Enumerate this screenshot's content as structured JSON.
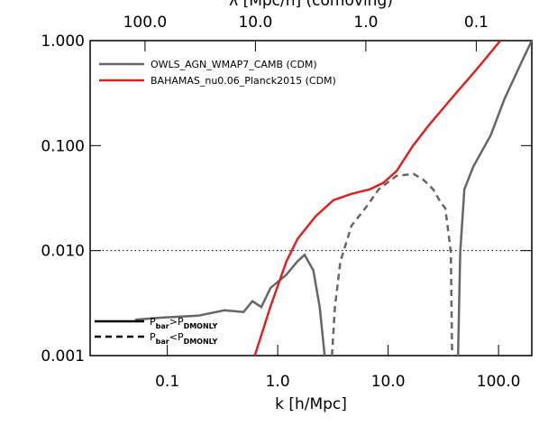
{
  "chart_data": {
    "type": "line",
    "xlabel": "k [h/Mpc]",
    "x2label": "λ [Mpc/h] (comoving)",
    "xscale": "log",
    "yscale": "log",
    "xlim": [
      0.02,
      200
    ],
    "ylim": [
      0.001,
      1.0
    ],
    "xticks": [
      {
        "value": 0.1,
        "label": "0.1"
      },
      {
        "value": 1,
        "label": "1.0"
      },
      {
        "value": 10,
        "label": "10.0"
      },
      {
        "value": 100,
        "label": "100.0"
      }
    ],
    "x2lim": [
      314.16,
      0.031416
    ],
    "x2ticks": [
      {
        "value": 100,
        "label": "100.0"
      },
      {
        "value": 10,
        "label": "10.0"
      },
      {
        "value": 1,
        "label": "1.0"
      },
      {
        "value": 0.1,
        "label": "0.1"
      }
    ],
    "yticks": [
      {
        "value": 0.001,
        "label": "0.001"
      },
      {
        "value": 0.01,
        "label": "0.010"
      },
      {
        "value": 0.1,
        "label": "0.100"
      },
      {
        "value": 1,
        "label": "1.000"
      }
    ],
    "reference_line": 0.01,
    "series": [
      {
        "name": "OWLS_AGN_WMAP7_CAMB (CDM)",
        "color": "#666666",
        "segments": [
          {
            "style": "solid",
            "x": [
              0.051,
              0.09,
              0.19,
              0.33,
              0.49,
              0.59,
              0.71,
              0.86,
              1.2,
              1.51,
              1.75,
              2.1,
              2.4,
              2.66
            ],
            "values": [
              0.0022,
              0.0023,
              0.0024,
              0.0027,
              0.0026,
              0.0033,
              0.0029,
              0.0044,
              0.0059,
              0.0079,
              0.0091,
              0.0065,
              0.0029,
              0.001
            ]
          },
          {
            "style": "dashed",
            "x": [
              3.1,
              3.3,
              3.7,
              4.66,
              6.3,
              8.2,
              11.9,
              17,
              21,
              25.6,
              30,
              33,
              37,
              38
            ],
            "values": [
              0.001,
              0.0029,
              0.0079,
              0.0173,
              0.0258,
              0.0383,
              0.0516,
              0.0537,
              0.047,
              0.0383,
              0.0286,
              0.0253,
              0.0096,
              0.001
            ]
          },
          {
            "style": "solid",
            "x": [
              43,
              45,
              49,
              59,
              85,
              113,
              160,
              200
            ],
            "values": [
              0.001,
              0.0096,
              0.0383,
              0.063,
              0.126,
              0.277,
              0.61,
              1.0
            ]
          }
        ]
      },
      {
        "name": "BAHAMAS_nu0.06_Planck2015 (CDM)",
        "color": "#dd2222",
        "segments": [
          {
            "style": "solid",
            "x": [
              0.62,
              0.86,
              1.2,
              1.51,
              2.2,
              3.2,
              4.66,
              6.8,
              9.0,
              11.9,
              16.7,
              23,
              37,
              65,
              104
            ],
            "values": [
              0.001,
              0.00294,
              0.0079,
              0.0129,
              0.0212,
              0.0303,
              0.0347,
              0.0383,
              0.044,
              0.057,
              0.099,
              0.153,
              0.277,
              0.55,
              1.0
            ]
          }
        ]
      }
    ],
    "linestyle_legend": [
      {
        "style": "solid",
        "parts": [
          "P",
          "bar",
          ">",
          "P",
          "DMONLY"
        ]
      },
      {
        "style": "dashed",
        "parts": [
          "P",
          "bar",
          "<",
          "P",
          "DMONLY"
        ]
      }
    ]
  }
}
